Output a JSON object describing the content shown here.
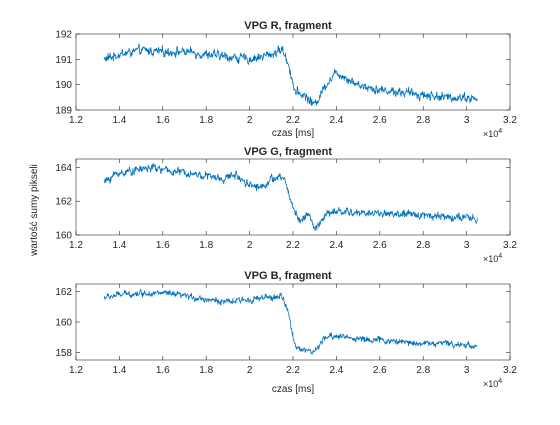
{
  "figure": {
    "ylabel": "wartość sumy pikseli",
    "exponent_base": "×10",
    "exponent_power": "4"
  },
  "chart_data": [
    {
      "type": "line",
      "title": "VPG R, fragment",
      "xlabel": "czas [ms]",
      "ylabel": "wartość sumy pikseli",
      "xlim": [
        1.2,
        3.2
      ],
      "ylim": [
        189,
        192
      ],
      "xticks": [
        "1.2",
        "1.4",
        "1.6",
        "1.8",
        "2",
        "2.2",
        "2.4",
        "2.6",
        "2.8",
        "3",
        "3.2"
      ],
      "yticks": [
        "189",
        "190",
        "191",
        "192"
      ],
      "x_multiplier": "×10^4",
      "color": "#0072BD",
      "grid": false,
      "x_range": [
        1.33,
        3.05
      ],
      "profile": [
        [
          1.33,
          191.0
        ],
        [
          1.4,
          191.2
        ],
        [
          1.5,
          191.35
        ],
        [
          1.6,
          191.3
        ],
        [
          1.7,
          191.3
        ],
        [
          1.8,
          191.2
        ],
        [
          1.9,
          191.1
        ],
        [
          2.0,
          191.0
        ],
        [
          2.1,
          191.2
        ],
        [
          2.15,
          191.4
        ],
        [
          2.18,
          190.8
        ],
        [
          2.21,
          189.7
        ],
        [
          2.25,
          189.6
        ],
        [
          2.3,
          189.2
        ],
        [
          2.35,
          190.0
        ],
        [
          2.4,
          190.5
        ],
        [
          2.5,
          190.0
        ],
        [
          2.6,
          189.8
        ],
        [
          2.7,
          189.7
        ],
        [
          2.8,
          189.6
        ],
        [
          2.9,
          189.5
        ],
        [
          3.0,
          189.5
        ],
        [
          3.05,
          189.4
        ]
      ],
      "noise": 0.22
    },
    {
      "type": "line",
      "title": "VPG G, fragment",
      "xlabel": "czas [ms]",
      "ylabel": "wartość sumy pikseli",
      "xlim": [
        1.2,
        3.2
      ],
      "ylim": [
        160,
        164.5
      ],
      "xticks": [
        "1.2",
        "1.4",
        "1.6",
        "1.8",
        "2",
        "2.2",
        "2.4",
        "2.6",
        "2.8",
        "3",
        "3.2"
      ],
      "yticks": [
        "160",
        "162",
        "164"
      ],
      "x_multiplier": "×10^4",
      "color": "#0072BD",
      "grid": false,
      "x_range": [
        1.33,
        3.05
      ],
      "profile": [
        [
          1.33,
          163.1
        ],
        [
          1.38,
          163.6
        ],
        [
          1.45,
          163.8
        ],
        [
          1.55,
          164.0
        ],
        [
          1.62,
          163.8
        ],
        [
          1.7,
          163.7
        ],
        [
          1.8,
          163.5
        ],
        [
          1.88,
          163.3
        ],
        [
          1.93,
          163.6
        ],
        [
          2.0,
          163.0
        ],
        [
          2.05,
          162.8
        ],
        [
          2.1,
          163.3
        ],
        [
          2.16,
          163.4
        ],
        [
          2.19,
          162.0
        ],
        [
          2.23,
          160.8
        ],
        [
          2.27,
          161.3
        ],
        [
          2.3,
          160.3
        ],
        [
          2.35,
          161.2
        ],
        [
          2.4,
          161.4
        ],
        [
          2.5,
          161.3
        ],
        [
          2.6,
          161.3
        ],
        [
          2.7,
          161.2
        ],
        [
          2.8,
          161.2
        ],
        [
          2.9,
          161.1
        ],
        [
          3.0,
          161.0
        ],
        [
          3.05,
          160.9
        ]
      ],
      "noise": 0.28
    },
    {
      "type": "line",
      "title": "VPG B, fragment",
      "xlabel": "czas [ms]",
      "ylabel": "wartość sumy pikseli",
      "xlim": [
        1.2,
        3.2
      ],
      "ylim": [
        157.5,
        162.5
      ],
      "xticks": [
        "1.2",
        "1.4",
        "1.6",
        "1.8",
        "2",
        "2.2",
        "2.4",
        "2.6",
        "2.8",
        "3",
        "3.2"
      ],
      "yticks": [
        "158",
        "160",
        "162"
      ],
      "x_multiplier": "×10^4",
      "color": "#0072BD",
      "grid": false,
      "x_range": [
        1.33,
        3.05
      ],
      "profile": [
        [
          1.33,
          161.6
        ],
        [
          1.4,
          161.8
        ],
        [
          1.5,
          161.9
        ],
        [
          1.6,
          161.9
        ],
        [
          1.7,
          161.7
        ],
        [
          1.8,
          161.5
        ],
        [
          1.9,
          161.3
        ],
        [
          2.0,
          161.5
        ],
        [
          2.1,
          161.6
        ],
        [
          2.15,
          161.7
        ],
        [
          2.18,
          160.5
        ],
        [
          2.21,
          158.4
        ],
        [
          2.25,
          158.2
        ],
        [
          2.3,
          158.0
        ],
        [
          2.35,
          159.0
        ],
        [
          2.4,
          159.1
        ],
        [
          2.5,
          158.9
        ],
        [
          2.6,
          158.8
        ],
        [
          2.7,
          158.7
        ],
        [
          2.8,
          158.6
        ],
        [
          2.9,
          158.6
        ],
        [
          3.0,
          158.5
        ],
        [
          3.05,
          158.4
        ]
      ],
      "noise": 0.25
    }
  ]
}
